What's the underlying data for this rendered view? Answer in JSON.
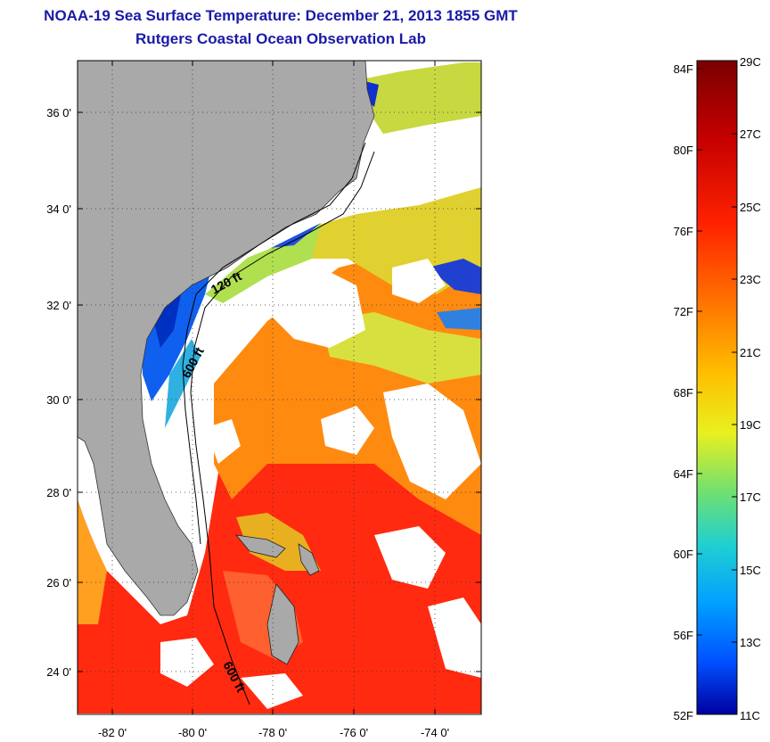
{
  "header": {
    "title": "NOAA-19 Sea Surface Temperature:  December 21, 2013 1855 GMT",
    "subtitle": "Rutgers Coastal Ocean Observation Lab"
  },
  "map": {
    "lat_labels": [
      "36 0'",
      "34 0'",
      "32 0'",
      "30 0'",
      "28 0'",
      "26 0'",
      "24 0'"
    ],
    "lon_labels": [
      "-82 0'",
      "-80 0'",
      "-78 0'",
      "-76 0'",
      "-74 0'"
    ],
    "isobath_labels": [
      "120 ft",
      "600 ft",
      "600 ft"
    ],
    "colors": {
      "land": "#a9a9a9",
      "cloud": "#ffffff",
      "frame": "#000000"
    }
  },
  "colorbar": {
    "fahrenheit_labels": [
      "84F",
      "80F",
      "76F",
      "72F",
      "68F",
      "64F",
      "60F",
      "56F",
      "52F"
    ],
    "celsius_labels": [
      "29C",
      "27C",
      "25C",
      "23C",
      "21C",
      "19C",
      "17C",
      "15C",
      "13C",
      "11C"
    ],
    "range_celsius": [
      11,
      29
    ],
    "range_fahrenheit": [
      52,
      84
    ],
    "colors": [
      "#7a0000",
      "#c60000",
      "#ff2200",
      "#ff7a00",
      "#ffc000",
      "#e8f020",
      "#70e070",
      "#20d0d0",
      "#00a0ff",
      "#0050ff",
      "#0000a0"
    ]
  }
}
